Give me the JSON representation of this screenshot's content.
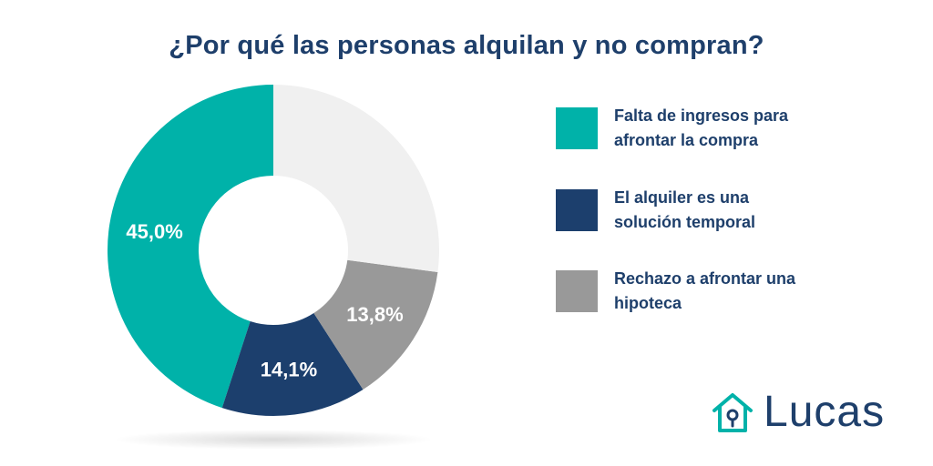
{
  "title": "¿Por qué las personas alquilan y no compran?",
  "chart_data": {
    "type": "pie",
    "title": "¿Por qué las personas alquilan y no compran?",
    "variant": "donut",
    "slices": [
      {
        "label": "Falta de ingresos para afrontar la compra",
        "value": 45.0,
        "display": "45,0%",
        "color": "#00b2a9",
        "show_label": true
      },
      {
        "label": "El alquiler es una solución temporal",
        "value": 14.1,
        "display": "14,1%",
        "color": "#1c3f6d",
        "show_label": true
      },
      {
        "label": "Rechazo a afrontar una hipoteca",
        "value": 13.8,
        "display": "13,8%",
        "color": "#999999",
        "show_label": true
      },
      {
        "label": "",
        "value": 27.1,
        "display": "",
        "color": "#f0f0f0",
        "show_label": false
      }
    ]
  },
  "legend": [
    {
      "label": "Falta de ingresos para afrontar la compra",
      "color": "#00b2a9"
    },
    {
      "label": "El alquiler es una solución temporal",
      "color": "#1c3f6d"
    },
    {
      "label": "Rechazo a afrontar una hipoteca",
      "color": "#999999"
    }
  ],
  "brand": {
    "name": "Lucas",
    "icon": "house-keyhole-icon",
    "accent": "#00b2a9",
    "text_color": "#1e3f6b"
  }
}
